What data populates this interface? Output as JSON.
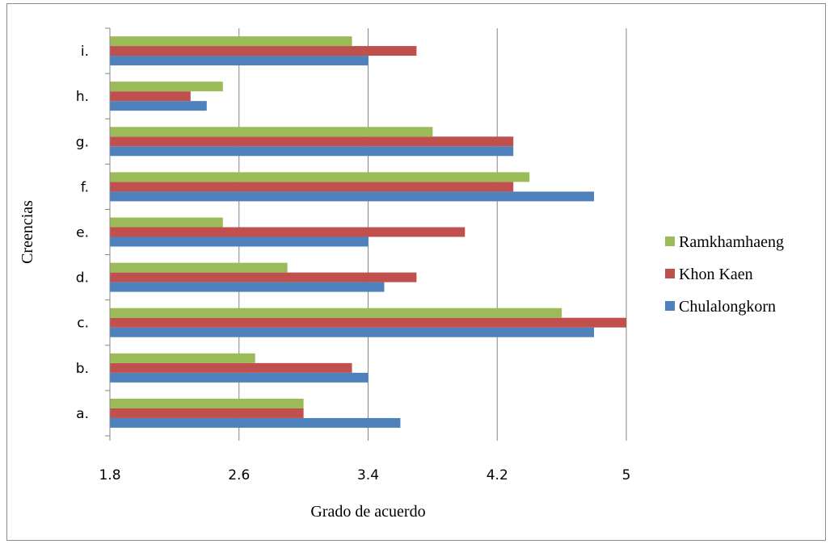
{
  "chart_data": {
    "type": "bar",
    "orientation": "horizontal",
    "title": "",
    "xlabel": "Grado de acuerdo",
    "ylabel": "Creencias",
    "xlim": [
      1.8,
      5
    ],
    "xticks": [
      "1.8",
      "2.6",
      "3.4",
      "4.2",
      "5"
    ],
    "categories": [
      "a.",
      "b.",
      "c.",
      "d.",
      "e.",
      "f.",
      "g.",
      "h.",
      "i."
    ],
    "series": [
      {
        "name": "Chulalongkorn",
        "color": "#4f81bd",
        "values": [
          3.6,
          3.4,
          4.8,
          3.5,
          3.4,
          4.8,
          4.3,
          2.4,
          3.4
        ]
      },
      {
        "name": "Khon Kaen",
        "color": "#c0504d",
        "values": [
          3.0,
          3.3,
          5.0,
          3.7,
          4.0,
          4.3,
          4.3,
          2.3,
          3.7
        ]
      },
      {
        "name": "Ramkhamhaeng",
        "color": "#9bbb59",
        "values": [
          3.0,
          2.7,
          4.6,
          2.9,
          2.5,
          4.4,
          3.8,
          2.5,
          3.3
        ]
      }
    ],
    "legend": [
      "Ramkhamhaeng",
      "Khon Kaen",
      "Chulalongkorn"
    ],
    "legend_position": "right",
    "grid": "vertical"
  }
}
